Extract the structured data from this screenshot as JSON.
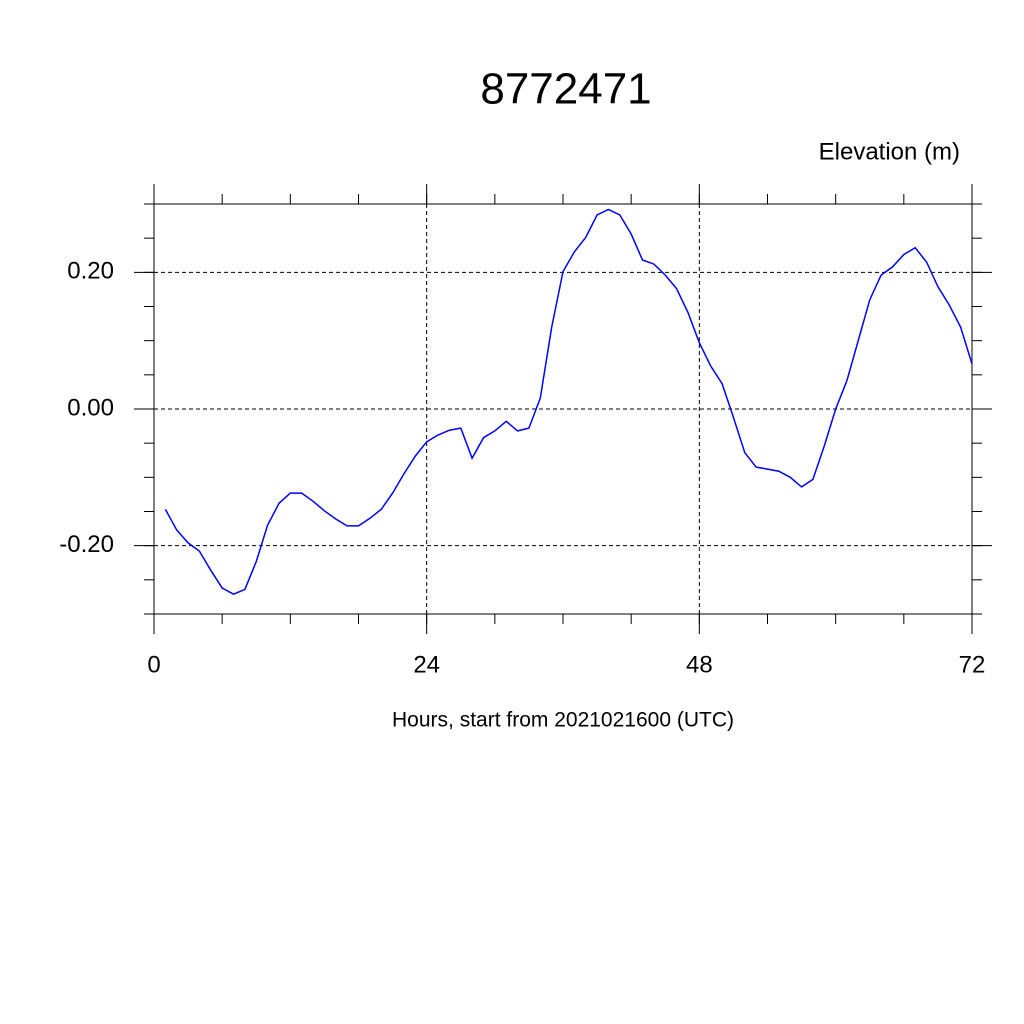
{
  "chart_data": {
    "type": "line",
    "title": "8772471",
    "y_label": "Elevation (m)",
    "x_label": "Hours, start from 2021021600 (UTC)",
    "x": [
      1,
      2,
      3,
      4,
      5,
      6,
      7,
      8,
      9,
      10,
      11,
      12,
      13,
      14,
      15,
      16,
      17,
      18,
      19,
      20,
      21,
      22,
      23,
      24,
      25,
      26,
      27,
      28,
      29,
      30,
      31,
      32,
      33,
      34,
      35,
      36,
      37,
      38,
      39,
      40,
      41,
      42,
      43,
      44,
      45,
      46,
      47,
      48,
      49,
      50,
      51,
      52,
      53,
      54,
      55,
      56,
      57,
      58,
      59,
      60,
      61,
      62,
      63,
      64,
      65,
      66,
      67,
      68,
      69,
      70,
      71,
      72
    ],
    "series": [
      {
        "color": "#0000ff",
        "values": [
          -0.147,
          -0.177,
          -0.196,
          -0.208,
          -0.236,
          -0.262,
          -0.271,
          -0.264,
          -0.223,
          -0.17,
          -0.138,
          -0.123,
          -0.123,
          -0.135,
          -0.149,
          -0.161,
          -0.171,
          -0.171,
          -0.16,
          -0.147,
          -0.123,
          -0.095,
          -0.069,
          -0.048,
          -0.038,
          -0.031,
          -0.028,
          -0.072,
          -0.042,
          -0.032,
          -0.018,
          -0.032,
          -0.028,
          0.016,
          0.119,
          0.201,
          0.23,
          0.251,
          0.284,
          0.292,
          0.284,
          0.256,
          0.218,
          0.212,
          0.196,
          0.176,
          0.141,
          0.097,
          0.063,
          0.037,
          -0.012,
          -0.064,
          -0.085,
          -0.088,
          -0.091,
          -0.1,
          -0.114,
          -0.103,
          -0.054,
          0.0,
          0.042,
          0.101,
          0.16,
          0.196,
          0.208,
          0.226,
          0.236,
          0.215,
          0.179,
          0.152,
          0.12,
          0.066
        ]
      }
    ],
    "xlim": [
      0,
      72
    ],
    "xticks": [
      0,
      24,
      48,
      72
    ],
    "ylim": [
      -0.3,
      0.3
    ],
    "yticks": [
      {
        "value": -0.2,
        "label": "-0.20"
      },
      {
        "value": 0,
        "label": "0.00"
      },
      {
        "value": 0.2,
        "label": "0.20"
      }
    ],
    "grid": true
  }
}
